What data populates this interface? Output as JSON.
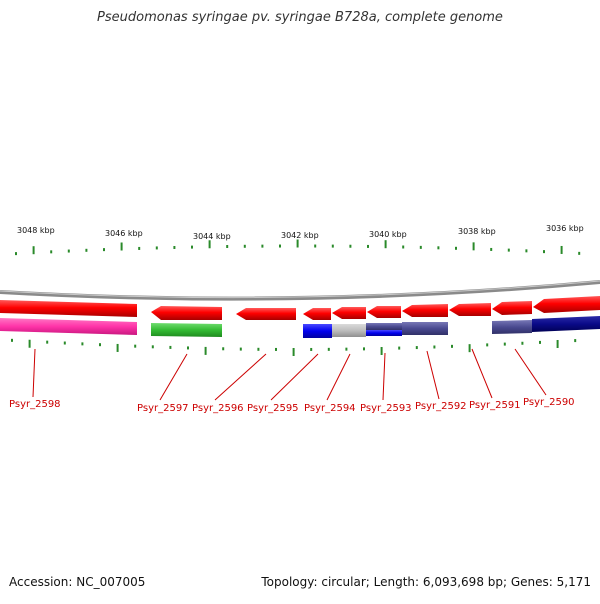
{
  "title": "Pseudomonas syringae pv. syringae B728a, complete genome",
  "footer": {
    "accession": "Accession: NC_007005",
    "summary": "Topology: circular; Length: 6,093,698 bp; Genes: 5,171"
  },
  "colors": {
    "backbone": "#888888",
    "tick": "#2a8a2a",
    "label": "#cc0000",
    "connector": "#cc0000",
    "gene_strand": "#ee0000"
  },
  "kbp_labels": [
    "3048 kbp",
    "3046 kbp",
    "3044 kbp",
    "3042 kbp",
    "3040 kbp",
    "3038 kbp",
    "3036 kbp"
  ],
  "genes": [
    {
      "id": "Psyr_2598",
      "label": "Psyr_2598"
    },
    {
      "id": "Psyr_2597",
      "label": "Psyr_2597"
    },
    {
      "id": "Psyr_2596",
      "label": "Psyr_2596"
    },
    {
      "id": "Psyr_2595",
      "label": "Psyr_2595"
    },
    {
      "id": "Psyr_2594",
      "label": "Psyr_2594"
    },
    {
      "id": "Psyr_2593",
      "label": "Psyr_2593"
    },
    {
      "id": "Psyr_2592",
      "label": "Psyr_2592"
    },
    {
      "id": "Psyr_2591",
      "label": "Psyr_2591"
    },
    {
      "id": "Psyr_2590",
      "label": "Psyr_2590"
    }
  ]
}
